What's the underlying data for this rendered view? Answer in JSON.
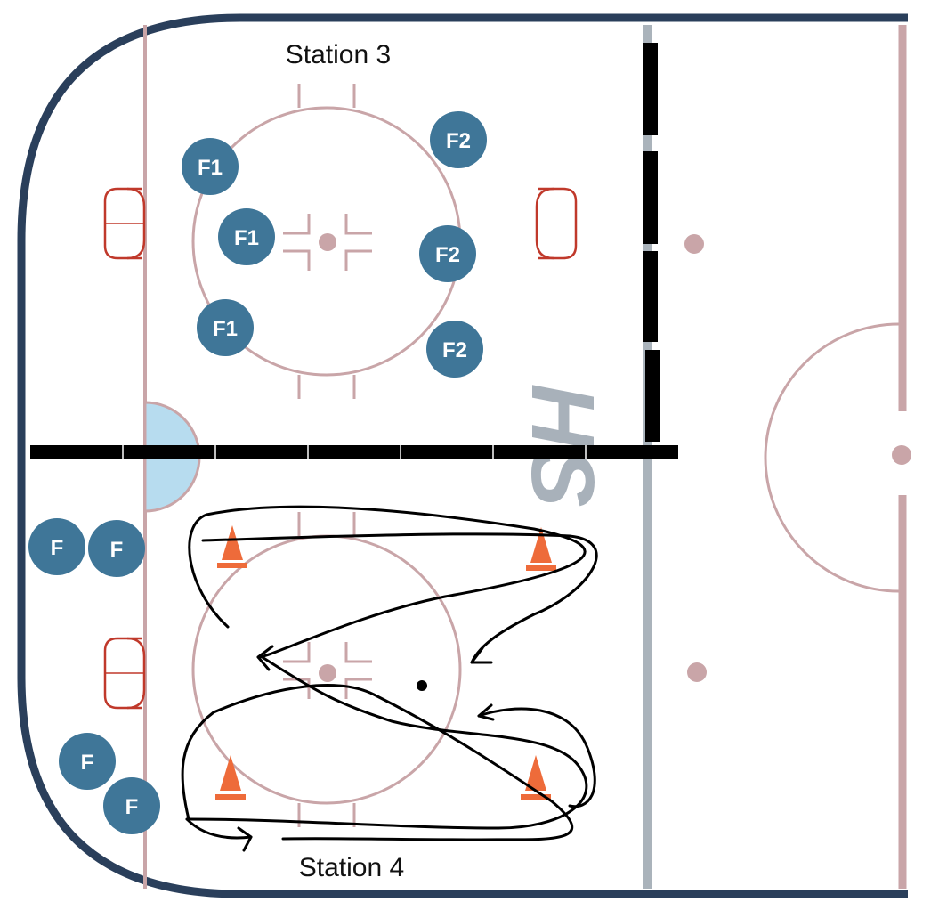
{
  "labels": {
    "station_top": "Station 3",
    "station_bottom": "Station 4"
  },
  "players": {
    "f1": "F1",
    "f2": "F2",
    "f": "F"
  },
  "logo_text": "HS",
  "colors": {
    "boards": "#2a3f5b",
    "rink_lines": "#c9a5a8",
    "goal_crease": "#b7dcef",
    "goal_net": "#c0392b",
    "player_fill": "#3f7698",
    "cone": "#ee6b3a",
    "divider": "#000000",
    "blue_line": "#aab3bb",
    "drill_path": "#000000"
  },
  "icons": [
    "cone-icon",
    "puck-icon",
    "goal-net-icon",
    "player-marker"
  ]
}
